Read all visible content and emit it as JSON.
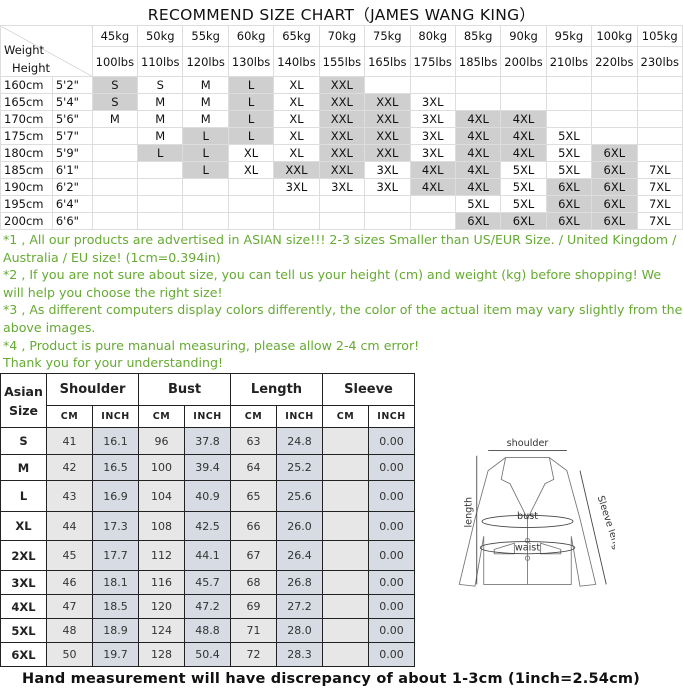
{
  "title": "RECOMMEND SIZE CHART（JAMES WANG KING）",
  "recommend": {
    "corner_top": "Weight",
    "corner_bottom": "Height",
    "kg": [
      "45kg",
      "50kg",
      "55kg",
      "60kg",
      "65kg",
      "70kg",
      "75kg",
      "80kg",
      "85kg",
      "90kg",
      "95kg",
      "100kg",
      "105kg"
    ],
    "lbs": [
      "100lbs",
      "110lbs",
      "120lbs",
      "130lbs",
      "140lbs",
      "155lbs",
      "165lbs",
      "175lbs",
      "185lbs",
      "200lbs",
      "210lbs",
      "220lbs",
      "230lbs"
    ],
    "rows": [
      {
        "cm": "160cm",
        "ft": "5'2\"",
        "cells": [
          "S",
          "S",
          "M",
          "L",
          "XL",
          "XXL",
          "",
          "",
          "",
          "",
          "",
          "",
          ""
        ],
        "shaded": [
          1,
          0,
          0,
          1,
          0,
          1,
          0,
          0,
          0,
          0,
          0,
          0,
          0
        ]
      },
      {
        "cm": "165cm",
        "ft": "5'4\"",
        "cells": [
          "S",
          "M",
          "M",
          "L",
          "XL",
          "XXL",
          "XXL",
          "3XL",
          "",
          "",
          "",
          "",
          ""
        ],
        "shaded": [
          1,
          0,
          0,
          1,
          0,
          1,
          1,
          0,
          0,
          0,
          0,
          0,
          0
        ]
      },
      {
        "cm": "170cm",
        "ft": "5'6\"",
        "cells": [
          "M",
          "M",
          "M",
          "L",
          "XL",
          "XXL",
          "XXL",
          "3XL",
          "4XL",
          "4XL",
          "",
          "",
          ""
        ],
        "shaded": [
          0,
          0,
          0,
          1,
          0,
          1,
          1,
          0,
          1,
          1,
          0,
          0,
          0
        ]
      },
      {
        "cm": "175cm",
        "ft": "5'7\"",
        "cells": [
          "",
          "M",
          "L",
          "L",
          "XL",
          "XXL",
          "XXL",
          "3XL",
          "4XL",
          "4XL",
          "5XL",
          "",
          ""
        ],
        "shaded": [
          0,
          0,
          1,
          1,
          0,
          1,
          1,
          0,
          1,
          1,
          0,
          0,
          0
        ]
      },
      {
        "cm": "180cm",
        "ft": "5'9\"",
        "cells": [
          "",
          "L",
          "L",
          "XL",
          "XL",
          "XXL",
          "XXL",
          "3XL",
          "4XL",
          "4XL",
          "5XL",
          "6XL",
          ""
        ],
        "shaded": [
          0,
          1,
          1,
          0,
          0,
          1,
          1,
          0,
          1,
          1,
          0,
          1,
          0
        ]
      },
      {
        "cm": "185cm",
        "ft": "6'1\"",
        "cells": [
          "",
          "",
          "L",
          "XL",
          "XXL",
          "XXL",
          "3XL",
          "4XL",
          "4XL",
          "5XL",
          "5XL",
          "6XL",
          "7XL"
        ],
        "shaded": [
          0,
          0,
          1,
          0,
          1,
          1,
          0,
          1,
          1,
          0,
          0,
          1,
          0
        ]
      },
      {
        "cm": "190cm",
        "ft": "6'2\"",
        "cells": [
          "",
          "",
          "",
          "",
          "3XL",
          "3XL",
          "3XL",
          "4XL",
          "4XL",
          "5XL",
          "6XL",
          "6XL",
          "7XL"
        ],
        "shaded": [
          0,
          0,
          0,
          0,
          0,
          0,
          0,
          1,
          1,
          0,
          1,
          1,
          0
        ]
      },
      {
        "cm": "195cm",
        "ft": "6'4\"",
        "cells": [
          "",
          "",
          "",
          "",
          "",
          "",
          "",
          "",
          "5XL",
          "5XL",
          "6XL",
          "6XL",
          "7XL"
        ],
        "shaded": [
          0,
          0,
          0,
          0,
          0,
          0,
          0,
          0,
          0,
          0,
          1,
          1,
          0
        ]
      },
      {
        "cm": "200cm",
        "ft": "6'6\"",
        "cells": [
          "",
          "",
          "",
          "",
          "",
          "",
          "",
          "",
          "6XL",
          "6XL",
          "6XL",
          "6XL",
          "7XL"
        ],
        "shaded": [
          0,
          0,
          0,
          0,
          0,
          0,
          0,
          0,
          1,
          1,
          1,
          1,
          0
        ]
      }
    ],
    "shade_color": "#cfcfcf"
  },
  "notes": [
    "*1 , All our products are advertised in ASIAN size!!! 2-3 sizes Smaller than US/EUR Size. / United Kingdom / Australia / EU size! (1cm=0.394in)",
    "*2 , If you are not sure about size, you can tell us your height (cm) and weight (kg) before shopping! We will help you choose the right size!",
    "*3 , As different computers display colors differently, the color of the actual item may vary slightly from the above images.",
    "*4 , Product is pure manual measuring, please allow 2-4 cm error!",
    "Thank you for your understanding!"
  ],
  "notes_color": "#66aa33",
  "measurements": {
    "size_header": "Asian Size",
    "groups": [
      "Shoulder",
      "Bust",
      "Length",
      "Sleeve"
    ],
    "units": [
      "CM",
      "INCH",
      "CM",
      "INCH",
      "CM",
      "INCH",
      "CM",
      "INCH"
    ],
    "rows": [
      {
        "size": "S",
        "values": [
          "41",
          "16.1",
          "96",
          "37.8",
          "63",
          "24.8",
          "",
          "0.00"
        ]
      },
      {
        "size": "M",
        "values": [
          "42",
          "16.5",
          "100",
          "39.4",
          "64",
          "25.2",
          "",
          "0.00"
        ]
      },
      {
        "size": "L",
        "values": [
          "43",
          "16.9",
          "104",
          "40.9",
          "65",
          "25.6",
          "",
          "0.00"
        ]
      },
      {
        "size": "XL",
        "values": [
          "44",
          "17.3",
          "108",
          "42.5",
          "66",
          "26.0",
          "",
          "0.00"
        ]
      },
      {
        "size": "2XL",
        "values": [
          "45",
          "17.7",
          "112",
          "44.1",
          "67",
          "26.4",
          "",
          "0.00"
        ]
      },
      {
        "size": "3XL",
        "values": [
          "46",
          "18.1",
          "116",
          "45.7",
          "68",
          "26.8",
          "",
          "0.00"
        ]
      },
      {
        "size": "4XL",
        "values": [
          "47",
          "18.5",
          "120",
          "47.2",
          "69",
          "27.2",
          "",
          "0.00"
        ]
      },
      {
        "size": "5XL",
        "values": [
          "48",
          "18.9",
          "124",
          "48.8",
          "71",
          "28.0",
          "",
          "0.00"
        ]
      },
      {
        "size": "6XL",
        "values": [
          "50",
          "19.7",
          "128",
          "50.4",
          "72",
          "28.3",
          "",
          "0.00"
        ]
      }
    ]
  },
  "diagram": {
    "shoulder": "shoulder",
    "length": "length",
    "bust": "bust",
    "waist": "waist",
    "sleeve": "Sleeve length"
  },
  "footer": "Hand measurement will have discrepancy of about 1-3cm (1inch=2.54cm)"
}
